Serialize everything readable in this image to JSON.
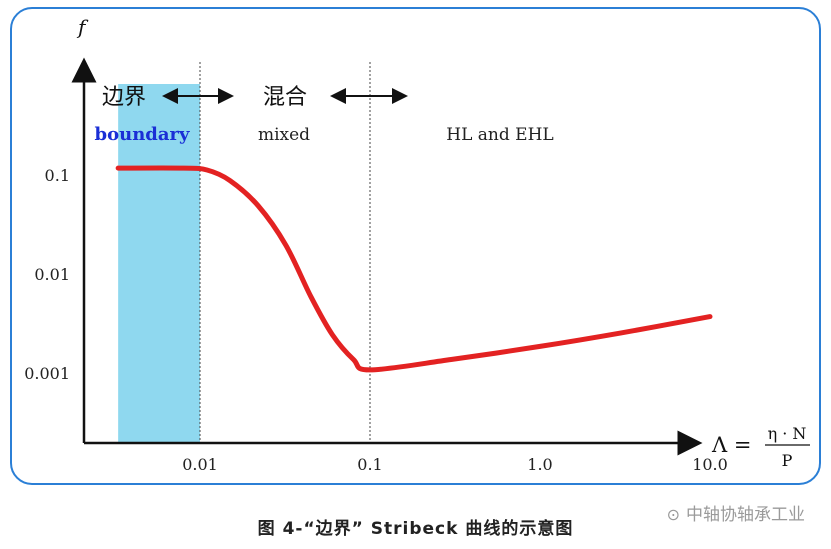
{
  "chart_data": {
    "type": "line",
    "ylabel": "f",
    "xlabel": "Λ = η·N / P",
    "xlabel_parts": {
      "lhs": "Λ =",
      "numerator": "η · N",
      "denominator": "P"
    },
    "x_scale": "log",
    "y_scale": "log",
    "x_ticks": [
      {
        "value": 0.01,
        "label": "0.01"
      },
      {
        "value": 0.1,
        "label": "0.1"
      },
      {
        "value": 1.0,
        "label": "1.0"
      },
      {
        "value": 10.0,
        "label": "10.0"
      }
    ],
    "y_ticks": [
      {
        "value": 0.1,
        "label": "0.1"
      },
      {
        "value": 0.01,
        "label": "0.01"
      },
      {
        "value": 0.001,
        "label": "0.001"
      }
    ],
    "regions": [
      {
        "label_cn": "边界",
        "label_en": "boundary",
        "x_start": 0.0033,
        "x_end": 0.01,
        "color": "#8fd8ef",
        "highlighted": true
      },
      {
        "label_cn": "混合",
        "label_en": "mixed",
        "x_start": 0.01,
        "x_end": 0.1
      },
      {
        "label_cn": "",
        "label_en": "HL and EHL",
        "x_start": 0.1,
        "x_end": 14
      }
    ],
    "series": [
      {
        "color": "#e32222",
        "x": [
          0.0033,
          0.008,
          0.011,
          0.015,
          0.022,
          0.032,
          0.045,
          0.06,
          0.08,
          0.1,
          0.3,
          1.0,
          3.0,
          10.0
        ],
        "y": [
          0.12,
          0.12,
          0.115,
          0.09,
          0.05,
          0.02,
          0.006,
          0.0025,
          0.0014,
          0.0011,
          0.0014,
          0.0019,
          0.0026,
          0.0038
        ]
      }
    ],
    "grid": false
  },
  "caption": "图 4-“边界” Stribeck 曲线的示意图",
  "watermark": "中轴协轴承工业"
}
